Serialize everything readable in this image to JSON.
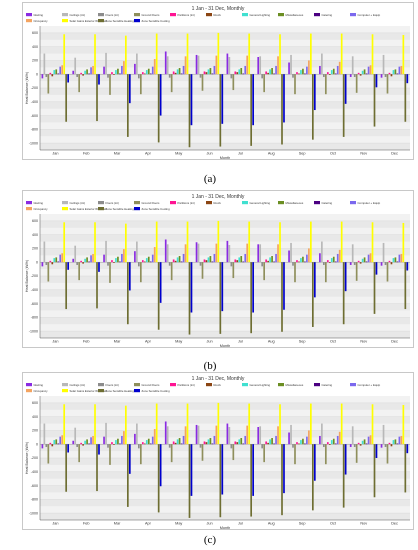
{
  "chart_data": [
    {
      "panel_label": "(a)",
      "type": "bar",
      "title": "1 Jan - 31 Dec, Monthly",
      "xlabel": "Month",
      "ylabel": "Heat Balance (kWh)",
      "ylim": [
        -1100,
        700
      ],
      "yticks": [
        600,
        400,
        200,
        0,
        -200,
        -400,
        -600,
        -800,
        -1000
      ],
      "grid": true,
      "legend_position": "top",
      "categories": [
        "Jan",
        "Feb",
        "Mar",
        "Apr",
        "May",
        "Jun",
        "Jul",
        "Aug",
        "Sep",
        "Oct",
        "Nov",
        "Dec"
      ],
      "series": [
        {
          "name": "Glazing",
          "color": "#8a2be2",
          "values": [
            -60,
            50,
            110,
            150,
            330,
            280,
            300,
            250,
            170,
            120,
            -40,
            -50
          ]
        },
        {
          "name": "Ceilings (int)",
          "color": "#b8b8b8",
          "values": [
            300,
            240,
            310,
            300,
            260,
            270,
            250,
            260,
            280,
            300,
            260,
            280
          ]
        },
        {
          "name": "Floors (int)",
          "color": "#8c8c8c",
          "values": [
            -40,
            -40,
            -50,
            -60,
            -50,
            -50,
            -60,
            -60,
            -50,
            -40,
            -40,
            -40
          ]
        },
        {
          "name": "Ground Floors",
          "color": "#8f8f5c",
          "values": [
            -280,
            -260,
            -300,
            -290,
            -260,
            -240,
            -230,
            -260,
            -290,
            -290,
            -270,
            -280
          ]
        },
        {
          "name": "Partitions (int)",
          "color": "#ff1493",
          "values": [
            20,
            20,
            30,
            30,
            40,
            40,
            40,
            40,
            30,
            30,
            20,
            20
          ]
        },
        {
          "name": "Roofs",
          "color": "#8b4513",
          "values": [
            -30,
            -20,
            -10,
            10,
            20,
            30,
            30,
            20,
            10,
            -10,
            -20,
            -30
          ]
        },
        {
          "name": "General Lighting",
          "color": "#40e0d0",
          "values": [
            60,
            50,
            60,
            60,
            70,
            70,
            70,
            70,
            60,
            60,
            50,
            60
          ]
        },
        {
          "name": "Miscellaneous",
          "color": "#6b8e23",
          "values": [
            70,
            70,
            80,
            80,
            90,
            90,
            90,
            90,
            80,
            80,
            70,
            70
          ]
        },
        {
          "name": "Catering",
          "color": "#4b0082",
          "values": [
            10,
            10,
            10,
            10,
            10,
            10,
            10,
            10,
            10,
            10,
            10,
            10
          ]
        },
        {
          "name": "Computer + Equip",
          "color": "#7b68ee",
          "values": [
            110,
            100,
            120,
            110,
            120,
            120,
            120,
            120,
            110,
            120,
            110,
            110
          ]
        },
        {
          "name": "Occupancy",
          "color": "#f4a460",
          "values": [
            130,
            120,
            190,
            220,
            260,
            270,
            270,
            260,
            200,
            180,
            130,
            120
          ]
        },
        {
          "name": "Solar Gains Exterior Windows",
          "color": "#ffff00",
          "values": [
            580,
            580,
            560,
            590,
            590,
            600,
            590,
            580,
            590,
            590,
            580,
            570
          ]
        },
        {
          "name": "Zone Sensible Heating",
          "color": "#6e6e32",
          "values": [
            -690,
            -680,
            -910,
            -990,
            -1060,
            -1050,
            -1040,
            -1020,
            -950,
            -910,
            -760,
            -690
          ]
        },
        {
          "name": "Zone Sensible Cooling",
          "color": "#0000cd",
          "values": [
            -120,
            -150,
            -420,
            -600,
            -740,
            -720,
            -740,
            -700,
            -520,
            -430,
            -190,
            -130
          ]
        }
      ]
    },
    {
      "panel_label": "(b)",
      "type": "bar",
      "title": "1 Jan - 31 Dec, Monthly",
      "xlabel": "Month",
      "ylabel": "Heat Balance (kWh)",
      "ylim": [
        -1100,
        700
      ],
      "yticks": [
        600,
        400,
        200,
        0,
        -200,
        -400,
        -600,
        -800,
        -1000
      ],
      "grid": true,
      "legend_position": "top",
      "categories": [
        "Jan",
        "Feb",
        "Mar",
        "Apr",
        "May",
        "Jun",
        "Jul",
        "Aug",
        "Sep",
        "Oct",
        "Nov",
        "Dec"
      ],
      "series": [
        {
          "name": "Glazing",
          "color": "#8a2be2",
          "values": [
            -60,
            50,
            110,
            160,
            330,
            290,
            310,
            260,
            170,
            130,
            -40,
            -50
          ]
        },
        {
          "name": "Ceilings (int)",
          "color": "#b8b8b8",
          "values": [
            300,
            240,
            310,
            300,
            260,
            270,
            250,
            260,
            280,
            300,
            260,
            280
          ]
        },
        {
          "name": "Floors (int)",
          "color": "#8c8c8c",
          "values": [
            -40,
            -40,
            -50,
            -60,
            -50,
            -50,
            -60,
            -60,
            -50,
            -40,
            -40,
            -40
          ]
        },
        {
          "name": "Ground Floors",
          "color": "#8f8f5c",
          "values": [
            -280,
            -260,
            -300,
            -290,
            -260,
            -240,
            -230,
            -260,
            -290,
            -290,
            -270,
            -280
          ]
        },
        {
          "name": "Partitions (int)",
          "color": "#ff1493",
          "values": [
            20,
            20,
            30,
            30,
            40,
            40,
            40,
            40,
            30,
            30,
            20,
            20
          ]
        },
        {
          "name": "Roofs",
          "color": "#8b4513",
          "values": [
            -30,
            -20,
            -10,
            10,
            20,
            30,
            30,
            20,
            10,
            -10,
            -20,
            -30
          ]
        },
        {
          "name": "General Lighting",
          "color": "#40e0d0",
          "values": [
            60,
            50,
            60,
            60,
            70,
            70,
            70,
            70,
            60,
            60,
            50,
            60
          ]
        },
        {
          "name": "Miscellaneous",
          "color": "#6b8e23",
          "values": [
            70,
            70,
            80,
            80,
            90,
            90,
            90,
            90,
            80,
            80,
            70,
            70
          ]
        },
        {
          "name": "Catering",
          "color": "#4b0082",
          "values": [
            10,
            10,
            10,
            10,
            10,
            10,
            10,
            10,
            10,
            10,
            10,
            10
          ]
        },
        {
          "name": "Computer + Equip",
          "color": "#7b68ee",
          "values": [
            110,
            100,
            120,
            110,
            120,
            120,
            120,
            120,
            110,
            120,
            110,
            110
          ]
        },
        {
          "name": "Occupancy",
          "color": "#f4a460",
          "values": [
            130,
            120,
            190,
            220,
            260,
            270,
            270,
            260,
            200,
            180,
            130,
            120
          ]
        },
        {
          "name": "Solar Gains Exterior Windows",
          "color": "#ffff00",
          "values": [
            580,
            580,
            560,
            590,
            590,
            600,
            590,
            580,
            590,
            590,
            580,
            570
          ]
        },
        {
          "name": "Zone Sensible Heating",
          "color": "#6e6e32",
          "values": [
            -680,
            -670,
            -900,
            -980,
            -1050,
            -1040,
            -1030,
            -1010,
            -940,
            -900,
            -750,
            -680
          ]
        },
        {
          "name": "Zone Sensible Cooling",
          "color": "#0000cd",
          "values": [
            -110,
            -140,
            -410,
            -590,
            -730,
            -710,
            -730,
            -690,
            -510,
            -420,
            -180,
            -120
          ]
        }
      ]
    },
    {
      "panel_label": "(c)",
      "type": "bar",
      "title": "1 Jan - 31 Dec, Monthly",
      "xlabel": "Month",
      "ylabel": "Heat Balance (kWh)",
      "ylim": [
        -1100,
        700
      ],
      "yticks": [
        600,
        400,
        200,
        0,
        -200,
        -400,
        -600,
        -800,
        -1000
      ],
      "grid": true,
      "legend_position": "top",
      "categories": [
        "Jan",
        "Feb",
        "Mar",
        "Apr",
        "May",
        "Jun",
        "Jul",
        "Aug",
        "Sep",
        "Oct",
        "Nov",
        "Dec"
      ],
      "series": [
        {
          "name": "Glazing",
          "color": "#8a2be2",
          "values": [
            -60,
            50,
            110,
            150,
            330,
            280,
            300,
            250,
            170,
            120,
            -40,
            -50
          ]
        },
        {
          "name": "Ceilings (int)",
          "color": "#b8b8b8",
          "values": [
            300,
            240,
            310,
            300,
            260,
            270,
            250,
            260,
            280,
            300,
            260,
            280
          ]
        },
        {
          "name": "Floors (int)",
          "color": "#8c8c8c",
          "values": [
            -40,
            -40,
            -50,
            -60,
            -50,
            -50,
            -60,
            -60,
            -50,
            -40,
            -40,
            -40
          ]
        },
        {
          "name": "Ground Floors",
          "color": "#8f8f5c",
          "values": [
            -280,
            -260,
            -300,
            -290,
            -260,
            -240,
            -230,
            -260,
            -290,
            -290,
            -270,
            -280
          ]
        },
        {
          "name": "Partitions (int)",
          "color": "#ff1493",
          "values": [
            20,
            20,
            30,
            30,
            40,
            40,
            40,
            40,
            30,
            30,
            20,
            20
          ]
        },
        {
          "name": "Roofs",
          "color": "#8b4513",
          "values": [
            -30,
            -20,
            -10,
            10,
            20,
            30,
            30,
            20,
            10,
            -10,
            -20,
            -30
          ]
        },
        {
          "name": "General Lighting",
          "color": "#40e0d0",
          "values": [
            60,
            50,
            60,
            60,
            70,
            70,
            70,
            70,
            60,
            60,
            50,
            60
          ]
        },
        {
          "name": "Miscellaneous",
          "color": "#6b8e23",
          "values": [
            70,
            70,
            80,
            80,
            90,
            90,
            90,
            90,
            80,
            80,
            70,
            70
          ]
        },
        {
          "name": "Catering",
          "color": "#4b0082",
          "values": [
            10,
            10,
            10,
            10,
            10,
            10,
            10,
            10,
            10,
            10,
            10,
            10
          ]
        },
        {
          "name": "Computer + Equip",
          "color": "#7b68ee",
          "values": [
            110,
            100,
            120,
            110,
            120,
            120,
            120,
            120,
            110,
            120,
            110,
            110
          ]
        },
        {
          "name": "Occupancy",
          "color": "#f4a460",
          "values": [
            130,
            120,
            190,
            220,
            260,
            270,
            270,
            260,
            200,
            180,
            130,
            120
          ]
        },
        {
          "name": "Solar Gains Exterior Windows",
          "color": "#ffff00",
          "values": [
            580,
            580,
            560,
            590,
            590,
            600,
            590,
            580,
            590,
            590,
            580,
            570
          ]
        },
        {
          "name": "Zone Sensible Heating",
          "color": "#6e6e32",
          "values": [
            -690,
            -680,
            -910,
            -990,
            -1070,
            -1060,
            -1050,
            -1030,
            -960,
            -920,
            -770,
            -700
          ]
        },
        {
          "name": "Zone Sensible Cooling",
          "color": "#0000cd",
          "values": [
            -120,
            -150,
            -430,
            -610,
            -750,
            -730,
            -750,
            -710,
            -530,
            -440,
            -200,
            -130
          ]
        }
      ]
    }
  ]
}
